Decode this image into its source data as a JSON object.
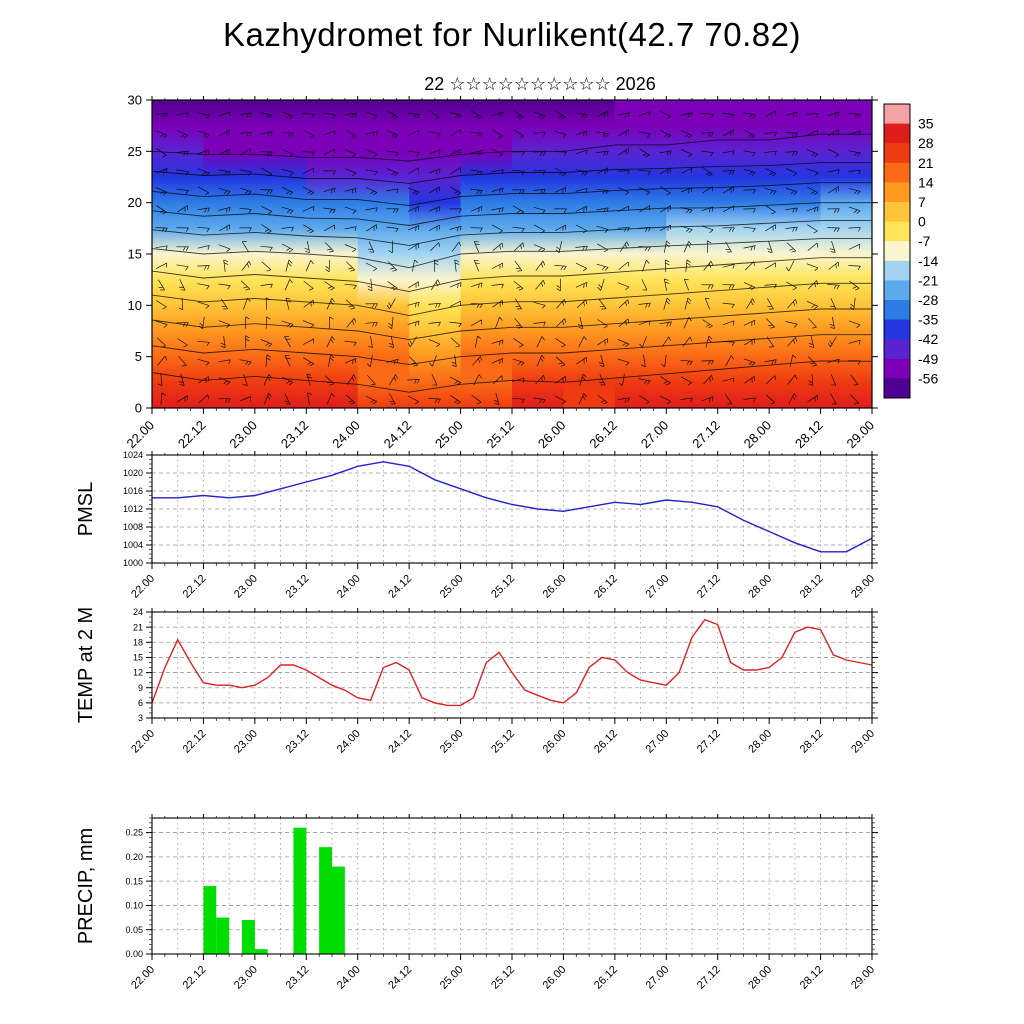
{
  "title": "Kazhydromet for Nurlikent(42.7 70.82)",
  "subtitle": "22 ☆☆☆☆☆☆☆☆☆☆ 2026",
  "x_axis": {
    "ticklabels": [
      "22.00",
      "22.12",
      "23.00",
      "23.12",
      "24.00",
      "24.12",
      "25.00",
      "25.12",
      "26.00",
      "26.12",
      "27.00",
      "27.12",
      "28.00",
      "28.12",
      "29.00"
    ],
    "hours_span": 168,
    "major_step_hours": 12,
    "minor_step_hours": 3
  },
  "colors": {
    "pmsl_line": "#2222cc",
    "temp_line": "#dd2222",
    "precip_bar": "#00dd00",
    "grid": "#9a9a9a",
    "frame": "#000000"
  },
  "colorbar": {
    "ticks": [
      35,
      28,
      21,
      14,
      7,
      0,
      -7,
      -14,
      -21,
      -28,
      -35,
      -42,
      -49,
      -56
    ],
    "band_colors": [
      "#f2a2a2",
      "#df1d1d",
      "#ee3b11",
      "#fa6a17",
      "#ff9821",
      "#ffc438",
      "#ffe45a",
      "#faf5cf",
      "#a2d4f2",
      "#5ca9ec",
      "#2d7ce6",
      "#2436e0",
      "#5a23d2",
      "#7c00b8",
      "#500090"
    ]
  },
  "chart_data": [
    {
      "type": "heatmap",
      "name": "cross-section",
      "title": "Temperature / wind time-height cross-section",
      "ylim": [
        0,
        30
      ],
      "yticks": [
        0,
        5,
        10,
        15,
        20,
        25,
        30
      ],
      "ytick_labels": [
        "0",
        "5",
        "10",
        "15",
        "20",
        "25",
        "30"
      ],
      "x_hours": [
        0,
        12,
        24,
        36,
        48,
        60,
        72,
        84,
        96,
        108,
        120,
        132,
        144,
        156,
        168
      ],
      "levels": [
        0,
        5,
        10,
        15,
        20,
        25,
        30
      ],
      "temps": [
        [
          30,
          17,
          3,
          -12,
          -31,
          -49,
          -58
        ],
        [
          28,
          15,
          1,
          -14,
          -33,
          -50,
          -58
        ],
        [
          29,
          16,
          2,
          -13,
          -32,
          -50,
          -58
        ],
        [
          28,
          15,
          1,
          -14,
          -34,
          -51,
          -59
        ],
        [
          27,
          14,
          0,
          -15,
          -34,
          -51,
          -59
        ],
        [
          25,
          12,
          -3,
          -18,
          -36,
          -52,
          -60
        ],
        [
          27,
          14,
          0,
          -14,
          -33,
          -50,
          -58
        ],
        [
          28,
          15,
          1,
          -13,
          -32,
          -49,
          -57
        ],
        [
          27,
          15,
          1,
          -13,
          -32,
          -49,
          -57
        ],
        [
          28,
          16,
          2,
          -12,
          -31,
          -48,
          -56
        ],
        [
          29,
          17,
          3,
          -11,
          -30,
          -48,
          -56
        ],
        [
          30,
          18,
          4,
          -10,
          -30,
          -47,
          -56
        ],
        [
          31,
          19,
          5,
          -9,
          -29,
          -47,
          -56
        ],
        [
          32,
          20,
          6,
          -8,
          -28,
          -46,
          -55
        ],
        [
          31,
          20,
          6,
          -8,
          -28,
          -46,
          -55
        ]
      ],
      "contour_levels": [
        21,
        14,
        7,
        0,
        -7,
        -14,
        -21,
        -28,
        -35,
        -42,
        -49
      ]
    },
    {
      "type": "line",
      "name": "pmsl",
      "ylabel": "PMSL",
      "ylim": [
        1000,
        1024
      ],
      "yticks": [
        1000,
        1004,
        1008,
        1012,
        1016,
        1020,
        1024
      ],
      "ytick_labels": [
        "1000",
        "1004",
        "1008",
        "1012",
        "1016",
        "1020",
        "1024"
      ],
      "y_minor_step": 1,
      "x_step_hours": 6,
      "values": [
        1014.5,
        1014.5,
        1015,
        1014.5,
        1015,
        1016.5,
        1018,
        1019.5,
        1021.5,
        1022.5,
        1021.5,
        1018.5,
        1016.5,
        1014.5,
        1013,
        1012,
        1011.5,
        1012.5,
        1013.5,
        1013,
        1014,
        1013.5,
        1012.5,
        1009.5,
        1007,
        1004.5,
        1002.5,
        1002.5,
        1005.5
      ]
    },
    {
      "type": "line",
      "name": "temp2m",
      "ylabel": "TEMP at 2 M",
      "ylim": [
        3,
        24
      ],
      "yticks": [
        3,
        6,
        9,
        12,
        15,
        18,
        21,
        24
      ],
      "ytick_labels": [
        "3",
        "6",
        "9",
        "12",
        "15",
        "18",
        "21",
        "24"
      ],
      "y_minor_step": 1,
      "x_step_hours": 3,
      "values": [
        6,
        13,
        18.5,
        14,
        10,
        9.5,
        9.5,
        9,
        9.5,
        11,
        13.5,
        13.5,
        12.5,
        11,
        9.5,
        8.5,
        7,
        6.5,
        13,
        14,
        12.5,
        7,
        6,
        5.5,
        5.5,
        7,
        14,
        16,
        12,
        8.5,
        7.5,
        6.5,
        6,
        8,
        13,
        15,
        14.5,
        12,
        10.5,
        10,
        9.5,
        12,
        19,
        22.5,
        21.5,
        14,
        12.5,
        12.5,
        13,
        15,
        20,
        21,
        20.5,
        15.5,
        14.5,
        14,
        13.5
      ]
    },
    {
      "type": "bar",
      "name": "precip",
      "ylabel": "PRECIP, mm",
      "ylim": [
        0,
        0.28
      ],
      "yticks": [
        0,
        0.05,
        0.1,
        0.15,
        0.2,
        0.25
      ],
      "ytick_labels": [
        "0.00",
        "0.05",
        "0.10",
        "0.15",
        "0.20",
        "0.25"
      ],
      "y_minor_step": 0.01,
      "bar_width_hours": 3,
      "bars": [
        {
          "h": 12,
          "v": 0.14
        },
        {
          "h": 15,
          "v": 0.075
        },
        {
          "h": 21,
          "v": 0.07
        },
        {
          "h": 24,
          "v": 0.01
        },
        {
          "h": 33,
          "v": 0.26
        },
        {
          "h": 39,
          "v": 0.22
        },
        {
          "h": 42,
          "v": 0.18
        }
      ]
    }
  ]
}
